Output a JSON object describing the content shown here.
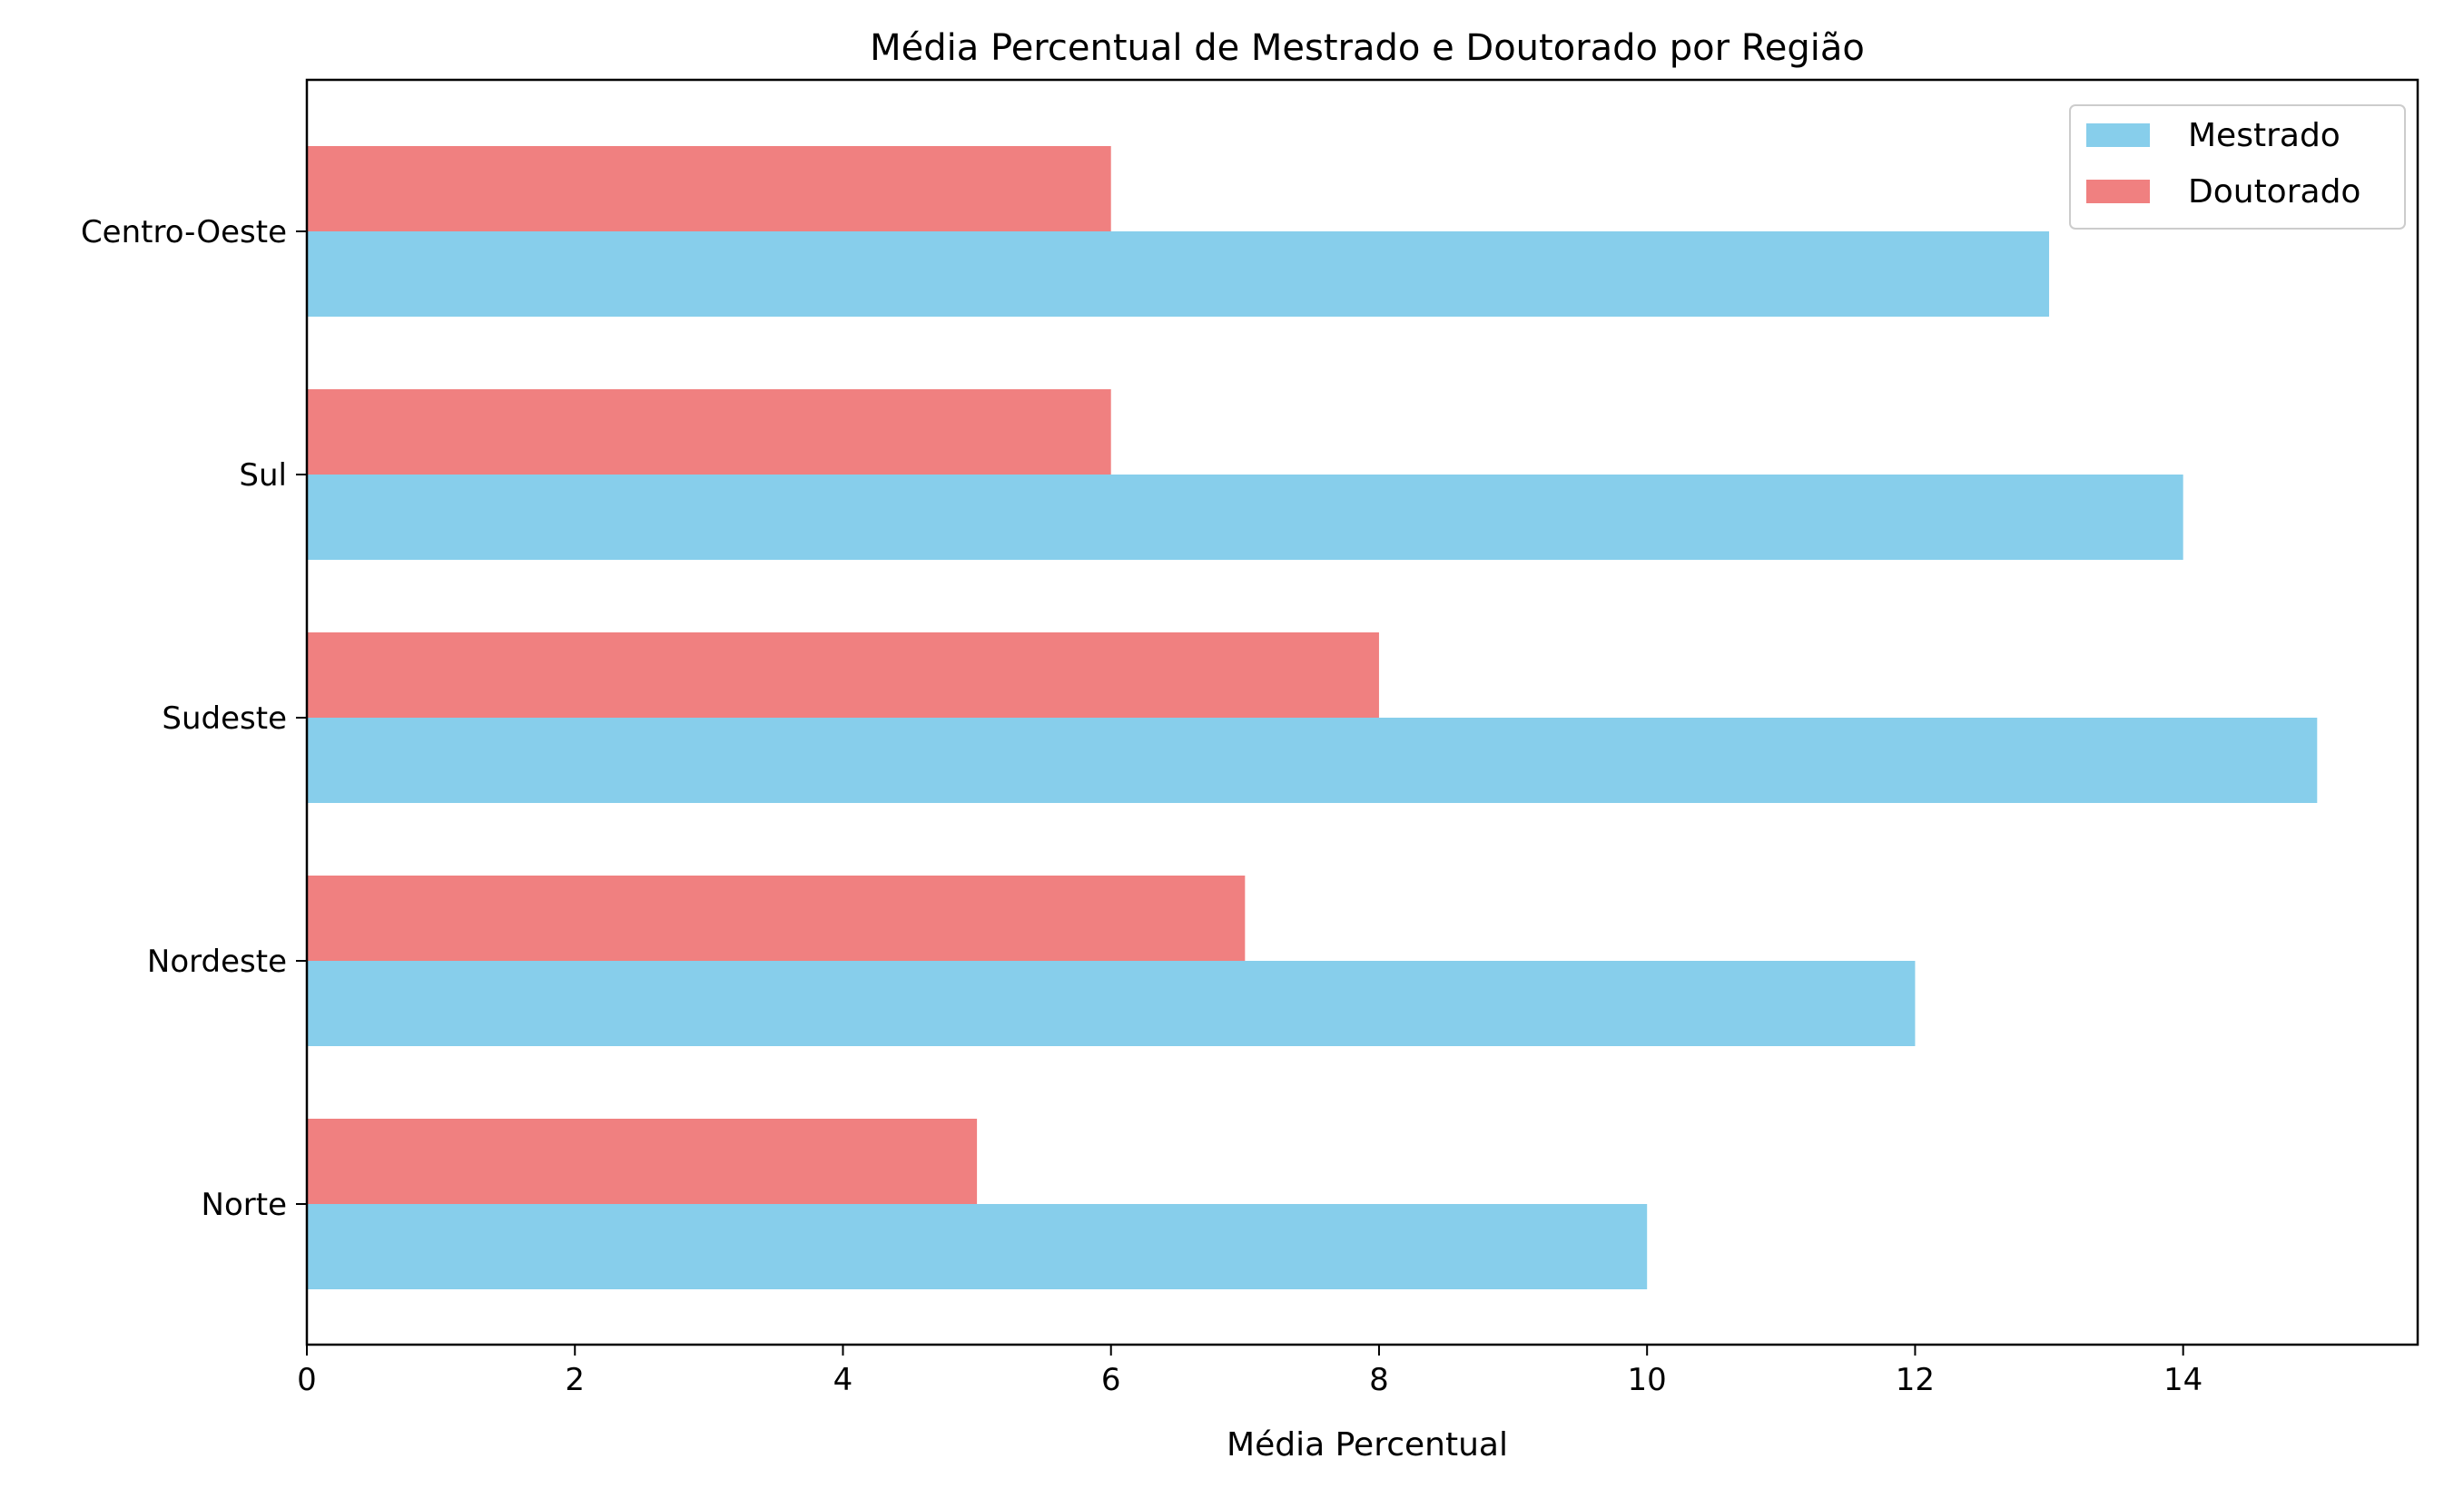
{
  "chart_data": {
    "type": "bar",
    "orientation": "horizontal",
    "title": "Média Percentual de Mestrado e Doutorado por Região",
    "xlabel": "Média Percentual",
    "ylabel": "",
    "categories": [
      "Norte",
      "Nordeste",
      "Sudeste",
      "Sul",
      "Centro-Oeste"
    ],
    "series": [
      {
        "name": "Mestrado",
        "color": "#87CEEB",
        "values": [
          10,
          12,
          15,
          14,
          13
        ]
      },
      {
        "name": "Doutorado",
        "color": "#F08080",
        "values": [
          5,
          7,
          8,
          6,
          6
        ]
      }
    ],
    "xlim": [
      0,
      15.75
    ],
    "xticks": [
      0,
      2,
      4,
      6,
      8,
      10,
      12,
      14
    ],
    "grid": false,
    "legend": "top-right"
  }
}
